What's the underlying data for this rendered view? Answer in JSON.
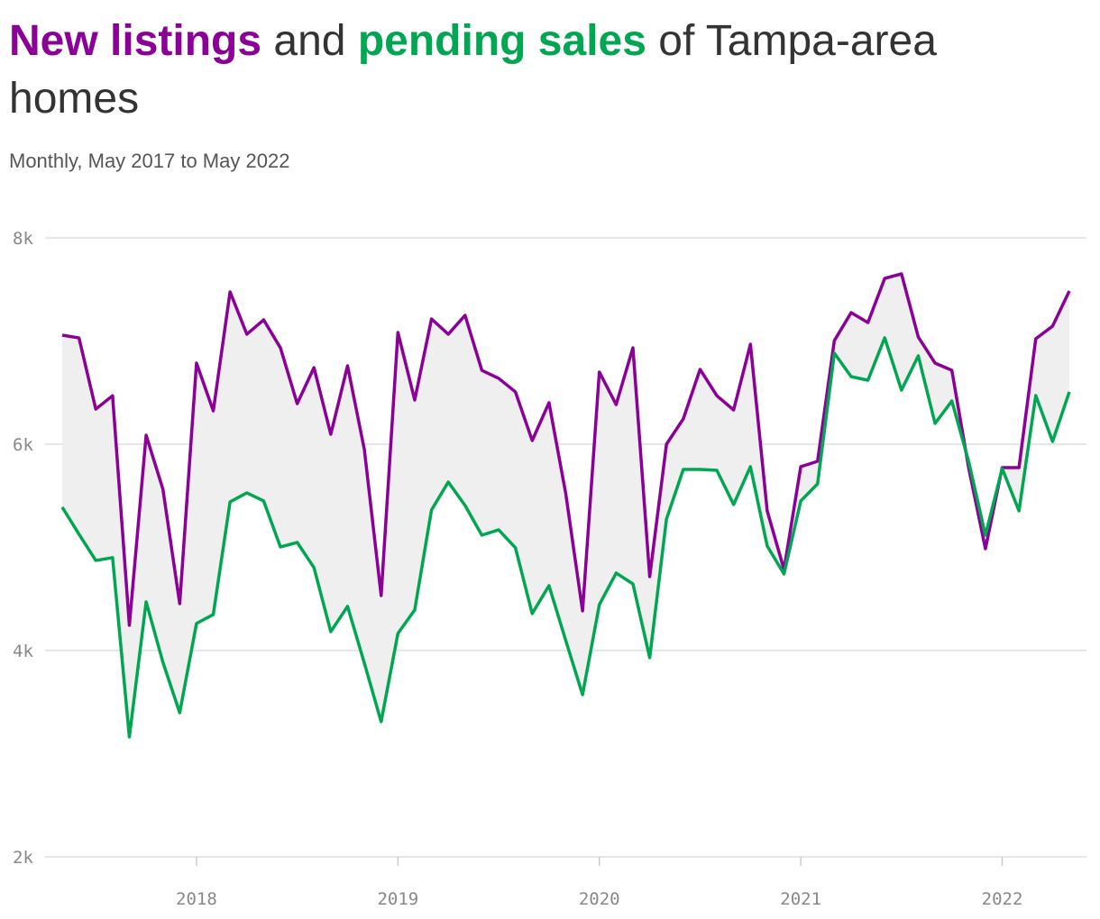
{
  "chart_data": {
    "type": "line",
    "title_parts": [
      " and ",
      " of Tampa-area homes"
    ],
    "subtitle": "Monthly, May 2017 to May 2022",
    "x": [
      "2017-05",
      "2017-06",
      "2017-07",
      "2017-08",
      "2017-09",
      "2017-10",
      "2017-11",
      "2017-12",
      "2018-01",
      "2018-02",
      "2018-03",
      "2018-04",
      "2018-05",
      "2018-06",
      "2018-07",
      "2018-08",
      "2018-09",
      "2018-10",
      "2018-11",
      "2018-12",
      "2019-01",
      "2019-02",
      "2019-03",
      "2019-04",
      "2019-05",
      "2019-06",
      "2019-07",
      "2019-08",
      "2019-09",
      "2019-10",
      "2019-11",
      "2019-12",
      "2020-01",
      "2020-02",
      "2020-03",
      "2020-04",
      "2020-05",
      "2020-06",
      "2020-07",
      "2020-08",
      "2020-09",
      "2020-10",
      "2020-11",
      "2020-12",
      "2021-01",
      "2021-02",
      "2021-03",
      "2021-04",
      "2021-05",
      "2021-06",
      "2021-07",
      "2021-08",
      "2021-09",
      "2021-10",
      "2021-11",
      "2021-12",
      "2022-01",
      "2022-02",
      "2022-03",
      "2022-04",
      "2022-05"
    ],
    "series": [
      {
        "name": "New listings",
        "color": "#8b0096",
        "values": [
          7057,
          7030,
          6340,
          6470,
          4245,
          6087,
          5563,
          4454,
          6786,
          6323,
          7476,
          7066,
          7205,
          6934,
          6393,
          6742,
          6096,
          6760,
          5948,
          4533,
          7083,
          6428,
          7214,
          7066,
          7249,
          6716,
          6638,
          6507,
          6035,
          6402,
          5520,
          4384,
          6699,
          6384,
          6934,
          4716,
          6000,
          6245,
          6725,
          6470,
          6332,
          6969,
          5354,
          4786,
          5782,
          5834,
          7004,
          7275,
          7179,
          7607,
          7651,
          7039,
          6786,
          6716,
          5773,
          4987,
          5773,
          5773,
          7022,
          7144,
          7485
        ]
      },
      {
        "name": "pending sales",
        "color": "#00a651",
        "values": [
          5389,
          5127,
          4873,
          4900,
          3162,
          4472,
          3886,
          3397,
          4262,
          4349,
          5441,
          5528,
          5450,
          5004,
          5048,
          4803,
          4183,
          4428,
          3878,
          3310,
          4166,
          4393,
          5362,
          5633,
          5406,
          5118,
          5170,
          4996,
          4358,
          4629,
          4096,
          3572,
          4445,
          4751,
          4646,
          3930,
          5275,
          5755,
          5755,
          5747,
          5415,
          5782,
          5013,
          4742,
          5450,
          5616,
          6882,
          6655,
          6620,
          7031,
          6524,
          6856,
          6201,
          6419,
          5834,
          5118,
          5764,
          5354,
          6472,
          6026,
          6507
        ]
      }
    ],
    "band_color": "#efefef",
    "ylim": [
      2000,
      8000
    ],
    "yticks": [
      {
        "value": 2000,
        "label": "2k"
      },
      {
        "value": 4000,
        "label": "4k"
      },
      {
        "value": 6000,
        "label": "6k"
      },
      {
        "value": 8000,
        "label": "8k"
      }
    ],
    "xlim": [
      "2017-05",
      "2022-05"
    ],
    "xticks": [
      {
        "value": "2018-01",
        "label": "2018"
      },
      {
        "value": "2019-01",
        "label": "2019"
      },
      {
        "value": "2020-01",
        "label": "2020"
      },
      {
        "value": "2021-01",
        "label": "2021"
      },
      {
        "value": "2022-01",
        "label": "2022"
      }
    ],
    "grid": true
  }
}
